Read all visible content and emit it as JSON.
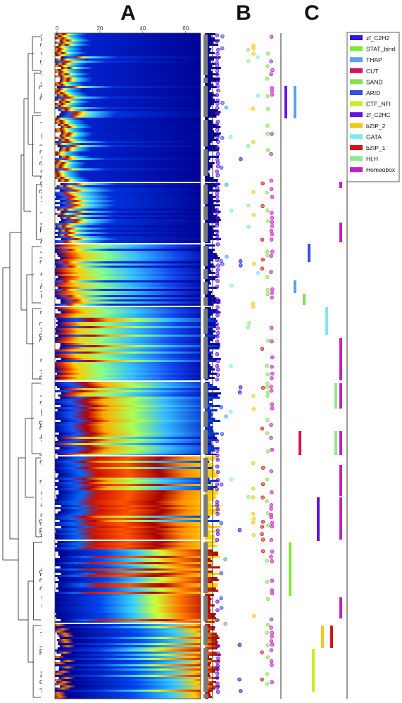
{
  "panels": {
    "a": "A",
    "b": "B",
    "c": "C"
  },
  "chart_data": {
    "type": "heatmap",
    "title": "",
    "xlabel": "",
    "ylabel": "",
    "x_ticks": [
      "0",
      "20",
      "40",
      "60"
    ],
    "x_tick_values": [
      0,
      20,
      40,
      60
    ],
    "xlim": [
      0,
      66
    ],
    "colormap": "jet",
    "row_groups": 8,
    "legend": [
      {
        "name": "zf_C2H2",
        "color": "#2a17e0"
      },
      {
        "name": "STAT_bind",
        "color": "#7ee83a"
      },
      {
        "name": "THAP",
        "color": "#5aa0f0"
      },
      {
        "name": "CUT",
        "color": "#d0145a"
      },
      {
        "name": "SAND",
        "color": "#84e04c"
      },
      {
        "name": "ARID",
        "color": "#3a4ee0"
      },
      {
        "name": "CTF_NFI",
        "color": "#c8ec28"
      },
      {
        "name": "zf_C2HC",
        "color": "#6414e0"
      },
      {
        "name": "bZIP_2",
        "color": "#f0c81e"
      },
      {
        "name": "GATA",
        "color": "#7ee6f6"
      },
      {
        "name": "bZIP_1",
        "color": "#cc1a1a"
      },
      {
        "name": "HLH",
        "color": "#8ee88a"
      },
      {
        "name": "Homeobox",
        "color": "#c21ec8"
      }
    ]
  }
}
